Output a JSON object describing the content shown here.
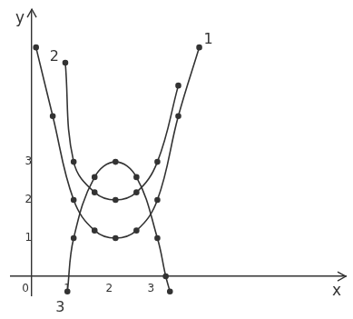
{
  "chart_data": {
    "type": "line",
    "x_label": "x",
    "y_label": "y",
    "xlim": [
      -0.5,
      7.5
    ],
    "ylim": [
      -0.5,
      7
    ],
    "xticks": [
      0,
      1,
      2,
      3
    ],
    "yticks": [
      1,
      2,
      3
    ],
    "grid": false,
    "marker": "circle",
    "color": "#333333",
    "series": [
      {
        "name": "1",
        "x": [
          0.1,
          0.5,
          1,
          1.5,
          2,
          2.5,
          3,
          3.5,
          4
        ],
        "values": [
          6.0,
          4.2,
          2,
          1.2,
          1,
          1.2,
          2,
          4.2,
          6.0
        ]
      },
      {
        "name": "2",
        "x": [
          0.8,
          1,
          1.5,
          2,
          2.5,
          3,
          3.5
        ],
        "values": [
          5.6,
          3,
          2.2,
          2,
          2.2,
          3,
          5.0
        ]
      },
      {
        "name": "3",
        "x": [
          0.85,
          1,
          1.5,
          2,
          2.5,
          3,
          3.2,
          3.3
        ],
        "values": [
          -0.4,
          1,
          2.6,
          3,
          2.6,
          1,
          0,
          -0.4
        ]
      }
    ]
  }
}
